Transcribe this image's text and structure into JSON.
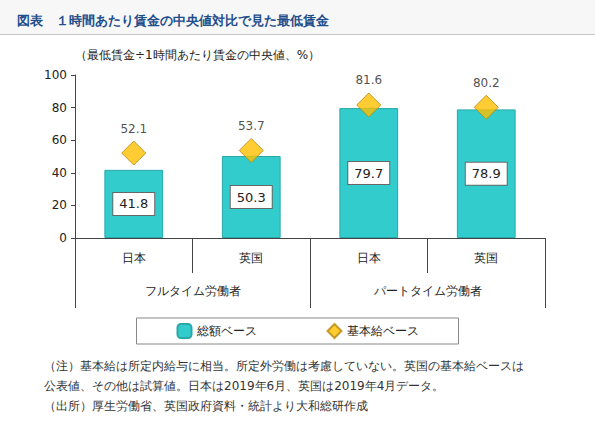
{
  "chart_data": {
    "type": "bar",
    "title": "図表　１時間あたり賃金の中央値対比で見た最低賃金",
    "y_label": "（最低賃金÷1時間あたり賃金の中央値、%）",
    "categories": [
      "日本",
      "英国",
      "日本",
      "英国"
    ],
    "category_groups": [
      "フルタイム労働者",
      "フルタイム労働者",
      "パートタイム労働者",
      "パートタイム労働者"
    ],
    "series": [
      {
        "name": "総額ベース",
        "type": "bar",
        "color": "#33CCCC",
        "values": [
          41.8,
          50.3,
          79.7,
          78.9
        ]
      },
      {
        "name": "基本給ベース",
        "type": "scatter",
        "marker": "diamond",
        "color": "#FFC000",
        "values": [
          52.1,
          53.7,
          81.6,
          80.2
        ]
      }
    ],
    "ylim": [
      0,
      100
    ],
    "yticks": [
      0,
      20,
      40,
      60,
      80,
      100
    ],
    "grid": false,
    "data_labels": true,
    "legend": "bottom",
    "notes": [
      "（注）基本給は所定内給与に相当。所定外労働は考慮していない。英国の基本給ベースは",
      "公表値、その他は試算値。日本は2019年6月、英国は2019年4月データ。",
      "（出所）厚生労働省、英国政府資料・統計より大和総研作成"
    ]
  }
}
